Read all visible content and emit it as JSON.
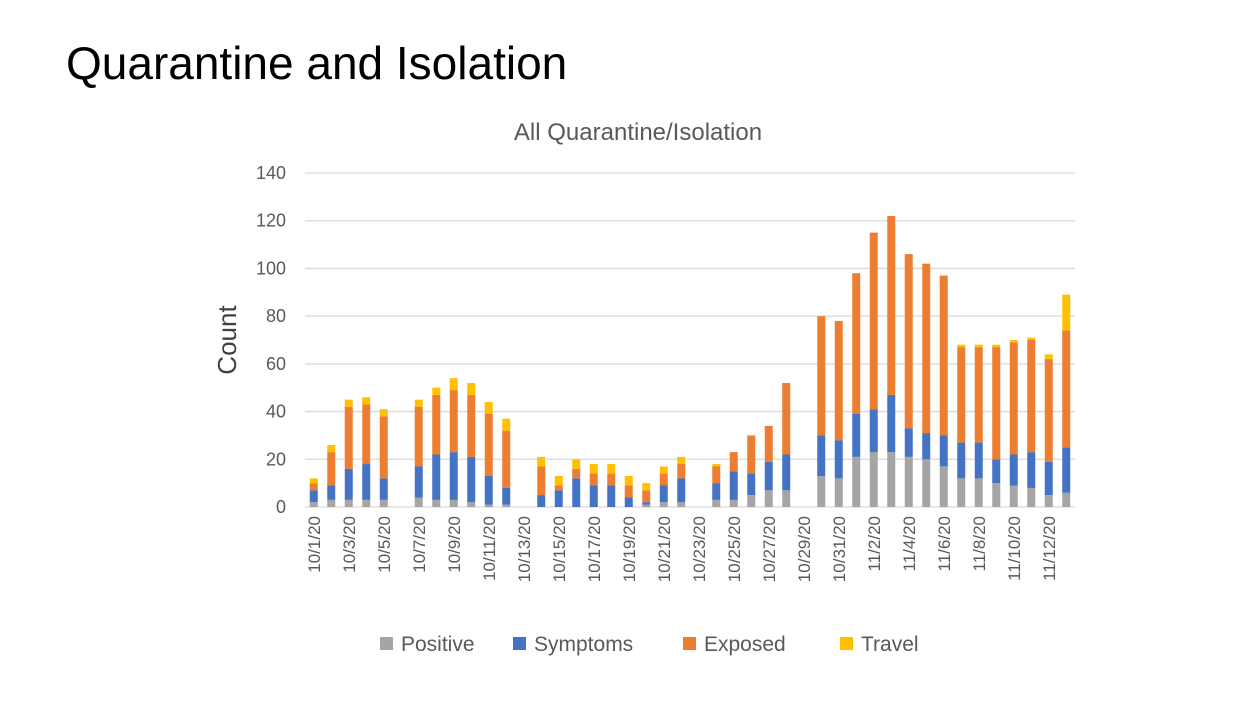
{
  "slide": {
    "title": "Quarantine and Isolation"
  },
  "chart_data": {
    "type": "bar",
    "stacked": true,
    "title": "All Quarantine/Isolation",
    "xlabel": "",
    "ylabel": "Count",
    "ylim": [
      0,
      140
    ],
    "yticks": [
      0,
      20,
      40,
      60,
      80,
      100,
      120,
      140
    ],
    "grid": true,
    "legend_position": "bottom",
    "categories": [
      "10/1/20",
      "10/2/20",
      "10/3/20",
      "10/4/20",
      "10/5/20",
      "10/6/20",
      "10/7/20",
      "10/8/20",
      "10/9/20",
      "10/10/20",
      "10/11/20",
      "10/12/20",
      "10/13/20",
      "10/14/20",
      "10/15/20",
      "10/16/20",
      "10/17/20",
      "10/18/20",
      "10/19/20",
      "10/20/20",
      "10/21/20",
      "10/22/20",
      "10/23/20",
      "10/24/20",
      "10/25/20",
      "10/26/20",
      "10/27/20",
      "10/28/20",
      "10/29/20",
      "10/30/20",
      "10/31/20",
      "11/1/20",
      "11/2/20",
      "11/3/20",
      "11/4/20",
      "11/5/20",
      "11/6/20",
      "11/7/20",
      "11/8/20",
      "11/9/20",
      "11/10/20",
      "11/11/20",
      "11/12/20",
      "11/13/20"
    ],
    "xtick_labels": [
      "10/1/20",
      "10/3/20",
      "10/5/20",
      "10/7/20",
      "10/9/20",
      "10/11/20",
      "10/13/20",
      "10/15/20",
      "10/17/20",
      "10/19/20",
      "10/21/20",
      "10/23/20",
      "10/25/20",
      "10/27/20",
      "10/29/20",
      "10/31/20",
      "11/2/20",
      "11/4/20",
      "11/6/20",
      "11/8/20",
      "11/10/20",
      "11/12/20"
    ],
    "series": [
      {
        "name": "Positive",
        "color": "#a5a5a5",
        "values": [
          2,
          3,
          3,
          3,
          3,
          0,
          4,
          3,
          3,
          2,
          1,
          1,
          0,
          0,
          0,
          0,
          0,
          0,
          0,
          1,
          2,
          2,
          0,
          3,
          3,
          5,
          7,
          7,
          0,
          13,
          12,
          21,
          23,
          23,
          21,
          20,
          17,
          12,
          12,
          10,
          9,
          8,
          5,
          6
        ]
      },
      {
        "name": "Symptoms",
        "color": "#4472c4",
        "values": [
          5,
          6,
          13,
          15,
          9,
          0,
          13,
          19,
          20,
          19,
          12,
          7,
          0,
          5,
          7,
          12,
          9,
          9,
          4,
          1,
          7,
          10,
          0,
          7,
          12,
          9,
          12,
          15,
          0,
          17,
          16,
          18,
          18,
          24,
          12,
          11,
          13,
          15,
          15,
          10,
          13,
          15,
          14,
          19
        ]
      },
      {
        "name": "Exposed",
        "color": "#ed7d31",
        "values": [
          3,
          14,
          26,
          25,
          26,
          0,
          25,
          25,
          26,
          26,
          26,
          24,
          0,
          12,
          2,
          4,
          5,
          5,
          5,
          5,
          5,
          6,
          0,
          7,
          8,
          16,
          15,
          30,
          0,
          50,
          50,
          59,
          74,
          75,
          73,
          71,
          67,
          40,
          40,
          47,
          47,
          47,
          43,
          49
        ]
      },
      {
        "name": "Travel",
        "color": "#ffc000",
        "values": [
          2,
          3,
          3,
          3,
          3,
          0,
          3,
          3,
          5,
          5,
          5,
          5,
          0,
          4,
          4,
          4,
          4,
          4,
          4,
          3,
          3,
          3,
          0,
          1,
          0,
          0,
          0,
          0,
          0,
          0,
          0,
          0,
          0,
          0,
          0,
          0,
          0,
          1,
          1,
          1,
          1,
          1,
          2,
          15
        ]
      }
    ]
  }
}
